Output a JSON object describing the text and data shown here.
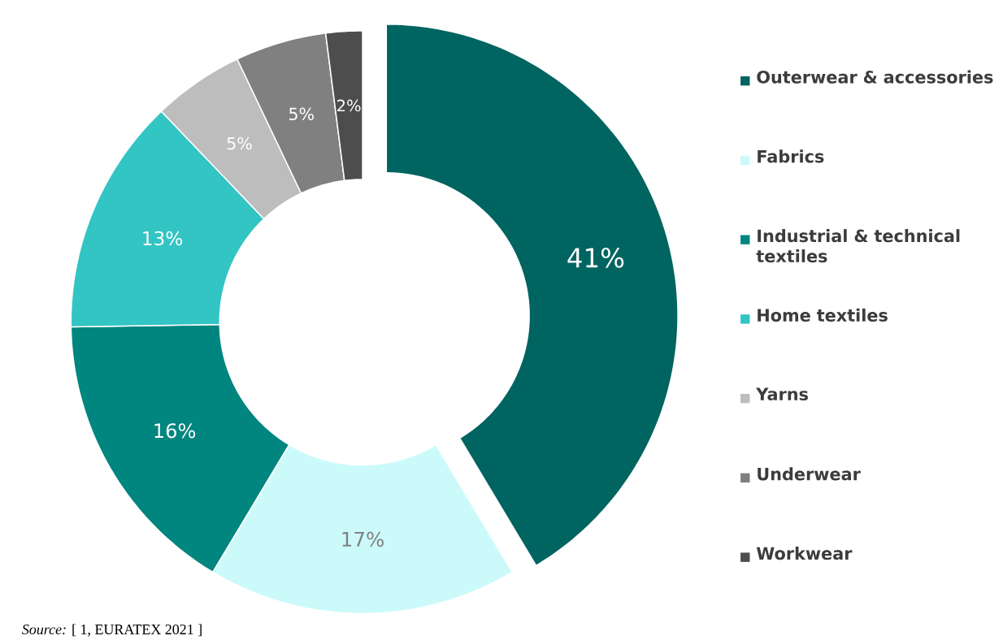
{
  "chart_data": {
    "type": "donut",
    "categories": [
      "Outerwear & accessories",
      "Fabrics",
      "Industrial & technical textiles",
      "Home textiles",
      "Yarns",
      "Underwear",
      "Workwear"
    ],
    "values": [
      41,
      17,
      16,
      13,
      5,
      5,
      2
    ],
    "value_labels": [
      "41%",
      "17%",
      "16%",
      "13%",
      "5%",
      "5%",
      "2%"
    ],
    "colors": [
      "#006461",
      "#ccfafa",
      "#00857f",
      "#33c4c4",
      "#bdbdbd",
      "#808080",
      "#4d4d4d"
    ],
    "legend": "right",
    "annotations": [
      "*Source:* [ 1, EURATEX 2021 ]"
    ]
  }
}
